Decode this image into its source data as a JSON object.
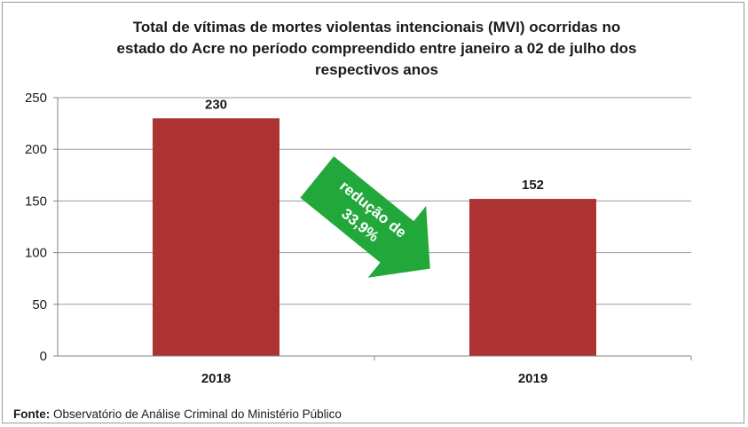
{
  "chart_data": {
    "type": "bar",
    "title": "Total de vítimas de mortes violentas intencionais (MVI) ocorridas no estado do Acre no período compreendido entre janeiro a 02 de julho dos respectivos anos",
    "title_lines": [
      "Total de vítimas de mortes violentas intencionais (MVI) ocorridas no",
      "estado do Acre no período compreendido entre janeiro a 02 de julho dos",
      "respectivos anos"
    ],
    "categories": [
      "2018",
      "2019"
    ],
    "values": [
      230,
      152
    ],
    "data_labels": [
      "230",
      "152"
    ],
    "ylim": [
      0,
      250
    ],
    "yticks": [
      0,
      50,
      100,
      150,
      200,
      250
    ],
    "xlabel": "",
    "ylabel": "",
    "grid": true,
    "legend": "none",
    "annotation": {
      "lines": [
        "redução de",
        "33,9%"
      ],
      "arrow_color": "#22a83a"
    },
    "colors": {
      "bar": "#ad3333",
      "grid": "#9a9a9a",
      "axis": "#808080"
    }
  },
  "source": {
    "label": "Fonte:",
    "text": "Observatório de Análise Criminal do Ministério Público"
  }
}
